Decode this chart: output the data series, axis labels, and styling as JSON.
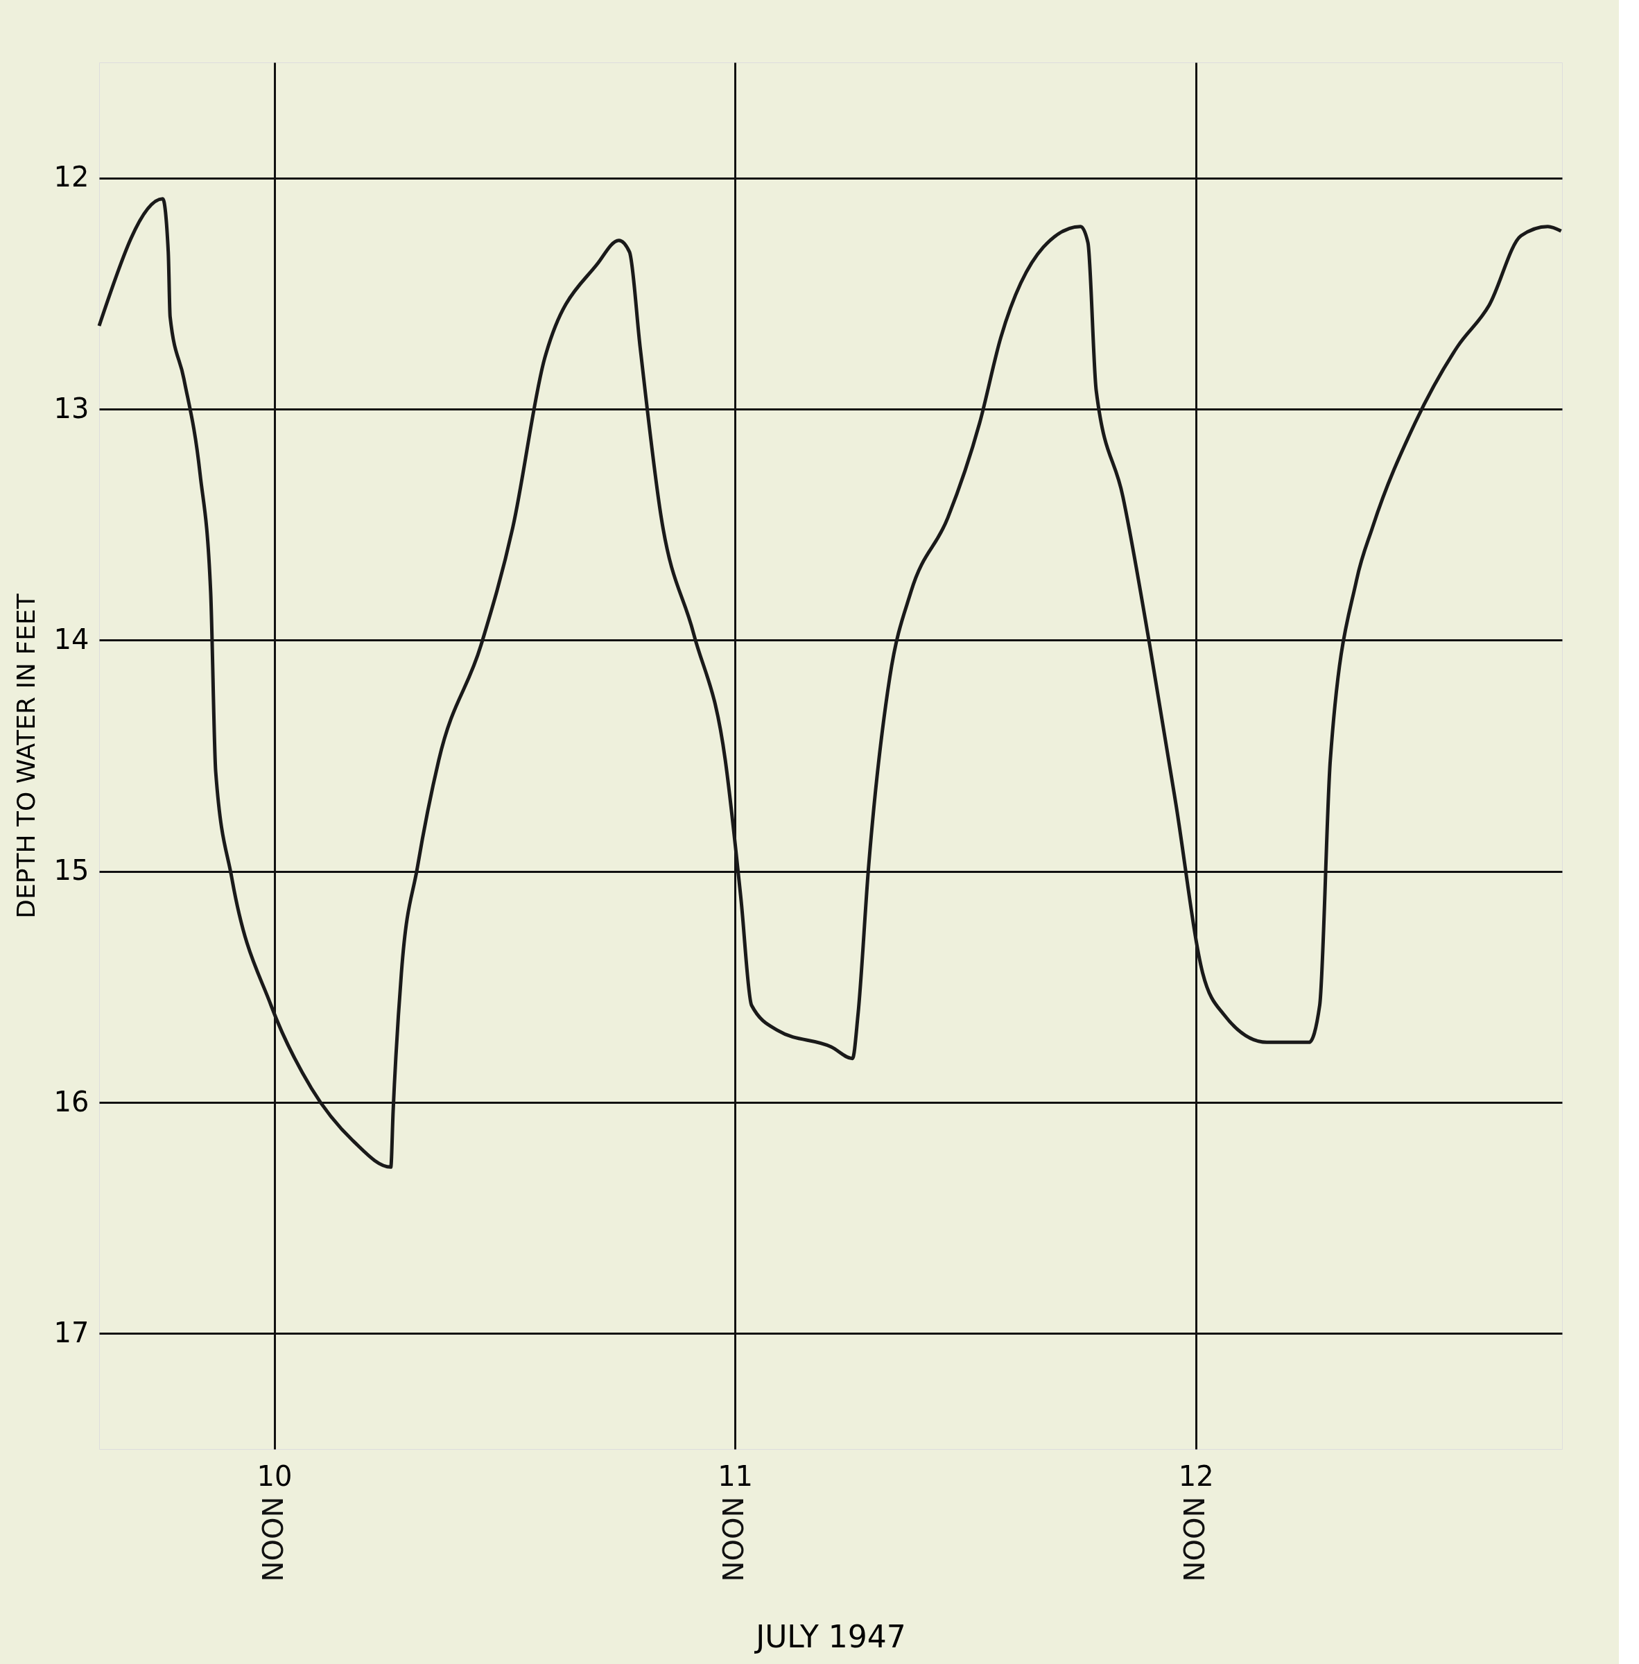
{
  "chart_data": {
    "type": "line",
    "xlabel": "JULY 1947",
    "ylabel": "DEPTH TO WATER IN FEET",
    "annotations": [
      "NOON",
      "NOON",
      "NOON"
    ],
    "x": [
      9.62,
      9.758,
      9.77,
      9.774,
      9.804,
      9.839,
      9.862,
      9.873,
      9.908,
      9.993,
      10.081,
      10.173,
      10.253,
      10.258,
      10.276,
      10.311,
      10.357,
      10.449,
      10.518,
      10.587,
      10.702,
      10.748,
      10.771,
      10.794,
      10.84,
      10.91,
      10.979,
      11.013,
      11.036,
      11.094,
      11.209,
      11.255,
      11.267,
      11.29,
      11.336,
      11.382,
      11.462,
      11.531,
      11.577,
      11.669,
      11.75,
      11.766,
      11.784,
      11.842,
      11.9,
      11.957,
      12.015,
      12.061,
      12.154,
      12.246,
      12.269,
      12.292,
      12.349,
      12.384,
      12.476,
      12.568,
      12.637,
      12.706,
      12.764,
      12.793
    ],
    "series": [
      {
        "color": "#1a1a1a",
        "values": [
          12.64,
          12.09,
          12.32,
          12.6,
          12.87,
          13.28,
          13.79,
          14.57,
          15.03,
          15.58,
          15.94,
          16.17,
          16.28,
          16.04,
          15.44,
          14.98,
          14.52,
          14.02,
          13.51,
          12.78,
          12.37,
          12.27,
          12.32,
          12.73,
          13.47,
          13.97,
          14.52,
          15.12,
          15.58,
          15.69,
          15.76,
          15.81,
          15.62,
          14.98,
          14.16,
          13.79,
          13.47,
          13.06,
          12.69,
          12.3,
          12.21,
          12.28,
          12.92,
          13.38,
          14.02,
          14.71,
          15.44,
          15.62,
          15.74,
          15.74,
          15.58,
          14.52,
          13.74,
          13.51,
          13.06,
          12.73,
          12.55,
          12.25,
          12.21,
          12.23
        ]
      }
    ],
    "xlim": [
      9.62,
      12.795
    ],
    "xticks": [
      10,
      11,
      12
    ],
    "ylim": [
      17.5,
      11.5
    ],
    "yticks": [
      12,
      13,
      14,
      15,
      16,
      17
    ],
    "grid": true,
    "marker": "none",
    "line_style": "solid"
  }
}
